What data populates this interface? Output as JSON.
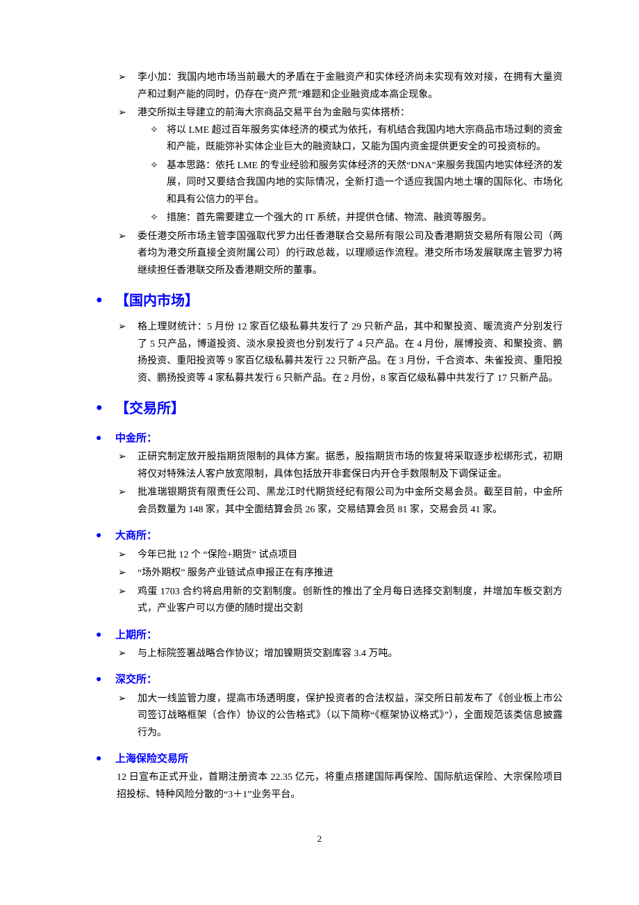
{
  "colors": {
    "heading": "#0000ff",
    "text": "#000000",
    "background": "#ffffff"
  },
  "typography": {
    "body_font": "SimSun",
    "body_size_pt": 10.5,
    "heading_size_pt": 15,
    "line_height": 1.75
  },
  "top_items": [
    "李小加：我国内地市场当前最大的矛盾在于金融资产和实体经济尚未实现有效对接，在拥有大量资产和过剩产能的同时，仍存在“资产荒”难题和企业融资成本高企现象。",
    "港交所拟主导建立的前海大宗商品交易平台为金融与实体搭桥："
  ],
  "top_subitems": [
    "将以 LME 超过百年服务实体经济的模式为依托，有机结合我国内地大宗商品市场过剩的资金和产能，既能弥补实体企业巨大的融资缺口，又能为国内资金提供更安全的可投资标的。",
    "基本思路：依托 LME 的专业经验和服务实体经济的天然“DNA”来服务我国内地实体经济的发展，同时又要结合我国内地的实际情况，全新打造一个适应我国内地土壤的国际化、市场化和具有公信力的平台。",
    "措施：首先需要建立一个强大的 IT 系统，并提供仓储、物流、融资等服务。"
  ],
  "top_tail": [
    "委任港交所市场主管李国强取代罗力出任香港联合交易所有限公司及香港期货交易所有限公司（两者均为港交所直接全资附属公司）的行政总裁，以理顺运作流程。港交所市场发展联席主管罗力将继续担任香港联交所及香港期交所的董事。"
  ],
  "sec_domestic": {
    "title": "【国内市场】",
    "items": [
      "格上理财统计：5 月份 12 家百亿级私募共发行了 29 只新产品，其中和聚投资、暖流资产分别发行了 5 只产品，博道投资、淡水泉投资也分别发行了 4 只产品。在 4 月份，展博投资、和聚投资、鹏扬投资、重阳投资等 9 家百亿级私募共发行 22 只新产品。在 3 月份，千合资本、朱雀投资、重阳投资、鹏扬投资等 4 家私募共发行 6 只新产品。在 2 月份，8 家百亿级私募中共发行了 17 只新产品。"
    ]
  },
  "sec_exchange": {
    "title": "【交易所】"
  },
  "sub_cffex": {
    "title": "中金所：",
    "items": [
      "正研究制定放开股指期货限制的具体方案。据悉，股指期货市场的恢复将采取逐步松绑形式，初期将仅对特殊法人客户放宽限制，具体包括放开非套保日内开仓手数限制及下调保证金。",
      "批准瑞银期货有限责任公司、黑龙江时代期货经纪有限公司为中金所交易会员。截至目前，中金所会员数量为 148 家，其中全面结算会员 26 家，交易结算会员 81 家，交易会员 41 家。"
    ]
  },
  "sub_dce": {
    "title": "大商所：",
    "items": [
      "今年已批 12 个 “保险+期货” 试点项目",
      "“场外期权” 服务产业链试点申报正在有序推进",
      "鸡蛋 1703 合约将启用新的交割制度。创新性的推出了全月每日选择交割制度，并增加车板交割方式，产业客户可以方便的随时提出交割"
    ]
  },
  "sub_shfe": {
    "title": "上期所：",
    "items": [
      "与上标院签署战略合作协议；增加镍期货交割库容 3.4 万吨。"
    ]
  },
  "sub_szse": {
    "title": "深交所：",
    "items": [
      "加大一线监管力度，提高市场透明度，保护投资者的合法权益，深交所日前发布了《创业板上市公司签订战略框架（合作）协议的公告格式》（以下简称“《框架协议格式》”），全面规范该类信息披露行为。"
    ]
  },
  "sub_shie": {
    "title": "上海保险交易所",
    "body": "12 日宣布正式开业，首期注册资本 22.35 亿元，将重点搭建国际再保险、国际航运保险、大宗保险项目招投标、特种风险分散的“3＋1”业务平台。"
  },
  "page_number": "2"
}
